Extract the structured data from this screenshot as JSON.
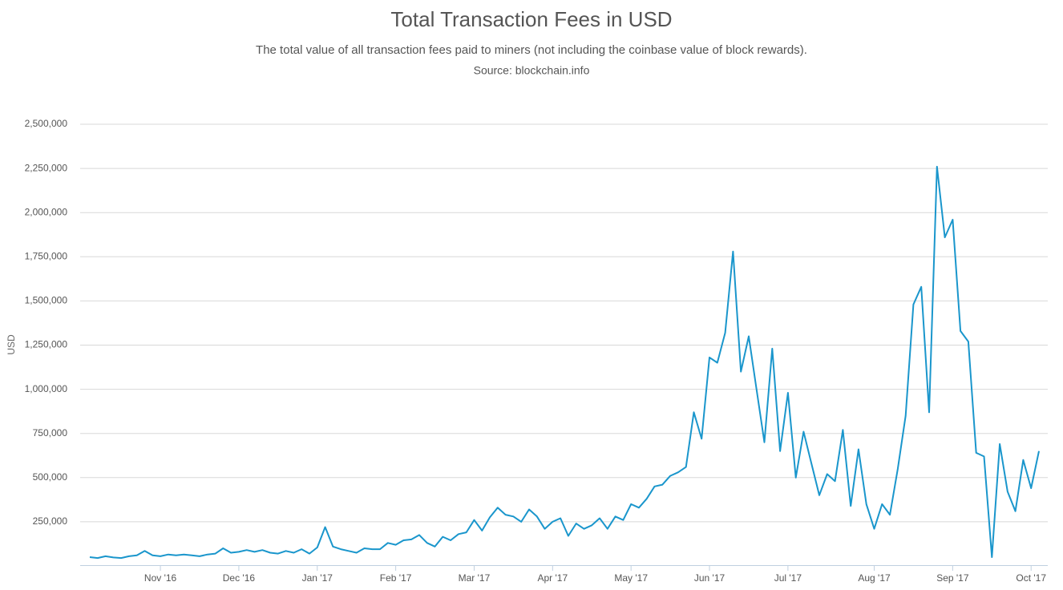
{
  "chart_data": {
    "type": "line",
    "title": "Total Transaction Fees in USD",
    "subtitle": "The total value of all transaction fees paid to miners (not including the coinbase value of block rewards).",
    "source": "Source: blockchain.info",
    "y_label": "USD",
    "categories": [
      null,
      null,
      null,
      null,
      null,
      null,
      null,
      null,
      null,
      "Nov '16",
      null,
      null,
      null,
      null,
      null,
      null,
      null,
      null,
      null,
      "Dec '16",
      null,
      null,
      null,
      null,
      null,
      null,
      null,
      null,
      null,
      "Jan '17",
      null,
      null,
      null,
      null,
      null,
      null,
      null,
      null,
      null,
      "Feb '17",
      null,
      null,
      null,
      null,
      null,
      null,
      null,
      null,
      null,
      "Mar '17",
      null,
      null,
      null,
      null,
      null,
      null,
      null,
      null,
      null,
      "Apr '17",
      null,
      null,
      null,
      null,
      null,
      null,
      null,
      null,
      null,
      "May '17",
      null,
      null,
      null,
      null,
      null,
      null,
      null,
      null,
      null,
      "Jun '17",
      null,
      null,
      null,
      null,
      null,
      null,
      null,
      null,
      null,
      "Jul '17",
      null,
      null,
      null,
      null,
      null,
      null,
      null,
      null,
      null,
      null,
      "Aug '17",
      null,
      null,
      null,
      null,
      null,
      null,
      null,
      null,
      null,
      "Sep '17",
      null,
      null,
      null,
      null,
      null,
      null,
      null,
      null,
      null,
      "Oct '17",
      null
    ],
    "series": [
      {
        "name": "Total Transaction Fees",
        "color": "#1a96cc",
        "values": [
          50000,
          45000,
          55000,
          48000,
          45000,
          55000,
          60000,
          85000,
          60000,
          55000,
          65000,
          60000,
          65000,
          60000,
          55000,
          65000,
          70000,
          100000,
          75000,
          80000,
          90000,
          80000,
          90000,
          75000,
          70000,
          85000,
          75000,
          95000,
          70000,
          105000,
          220000,
          110000,
          95000,
          85000,
          75000,
          100000,
          95000,
          95000,
          130000,
          120000,
          145000,
          150000,
          175000,
          130000,
          110000,
          165000,
          145000,
          180000,
          190000,
          260000,
          200000,
          275000,
          330000,
          290000,
          280000,
          250000,
          320000,
          280000,
          210000,
          250000,
          270000,
          170000,
          240000,
          210000,
          230000,
          270000,
          210000,
          280000,
          260000,
          350000,
          330000,
          380000,
          450000,
          460000,
          510000,
          530000,
          560000,
          870000,
          720000,
          1180000,
          1150000,
          1320000,
          1780000,
          1100000,
          1300000,
          1000000,
          700000,
          1230000,
          650000,
          980000,
          500000,
          760000,
          580000,
          400000,
          520000,
          480000,
          770000,
          340000,
          660000,
          350000,
          210000,
          350000,
          290000,
          550000,
          850000,
          1480000,
          1580000,
          870000,
          2260000,
          1860000,
          1960000,
          1330000,
          1270000,
          640000,
          620000,
          50000,
          690000,
          420000,
          310000,
          600000,
          440000,
          650000
        ]
      }
    ],
    "ylim": [
      0,
      2500000
    ],
    "yticks": [
      {
        "value": 250000,
        "label": "250,000"
      },
      {
        "value": 500000,
        "label": "500,000"
      },
      {
        "value": 750000,
        "label": "750,000"
      },
      {
        "value": 1000000,
        "label": "1,000,000"
      },
      {
        "value": 1250000,
        "label": "1,250,000"
      },
      {
        "value": 1500000,
        "label": "1,500,000"
      },
      {
        "value": 1750000,
        "label": "1,750,000"
      },
      {
        "value": 2000000,
        "label": "2,000,000"
      },
      {
        "value": 2250000,
        "label": "2,250,000"
      },
      {
        "value": 2500000,
        "label": "2,500,000"
      }
    ],
    "grid": true
  }
}
